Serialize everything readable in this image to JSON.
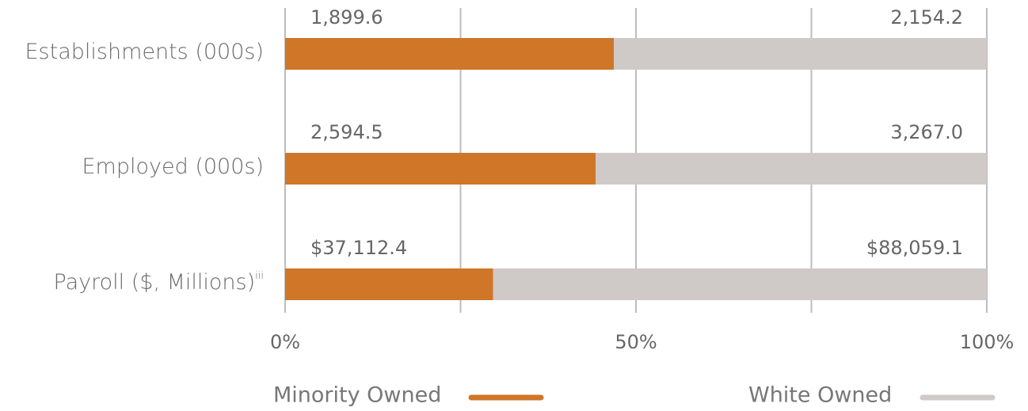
{
  "chart_data": {
    "type": "bar",
    "orientation": "horizontal",
    "stacked": "percent",
    "categories": [
      "Establishments (000s)",
      "Employed (000s)",
      "Payroll ($, Millions)"
    ],
    "category_footnotes": [
      null,
      null,
      "iii"
    ],
    "series": [
      {
        "name": "Minority Owned",
        "color": "#cf7628",
        "values": [
          1899.6,
          2594.5,
          37112.4
        ],
        "value_labels": [
          "1,899.6",
          "2,594.5",
          "$37,112.4"
        ]
      },
      {
        "name": "White Owned",
        "color": "#cfcac7",
        "values": [
          2154.2,
          3267.0,
          88059.1
        ],
        "value_labels": [
          "2,154.2",
          "3,267.0",
          "$88,059.1"
        ]
      }
    ],
    "xlim": [
      0,
      100
    ],
    "xticks": [
      {
        "value": 0,
        "label": "0%"
      },
      {
        "value": 50,
        "label": "50%"
      },
      {
        "value": 100,
        "label": "100%"
      }
    ],
    "minor_xticks": [
      25,
      75
    ],
    "grid": true,
    "legend": "bottom"
  }
}
